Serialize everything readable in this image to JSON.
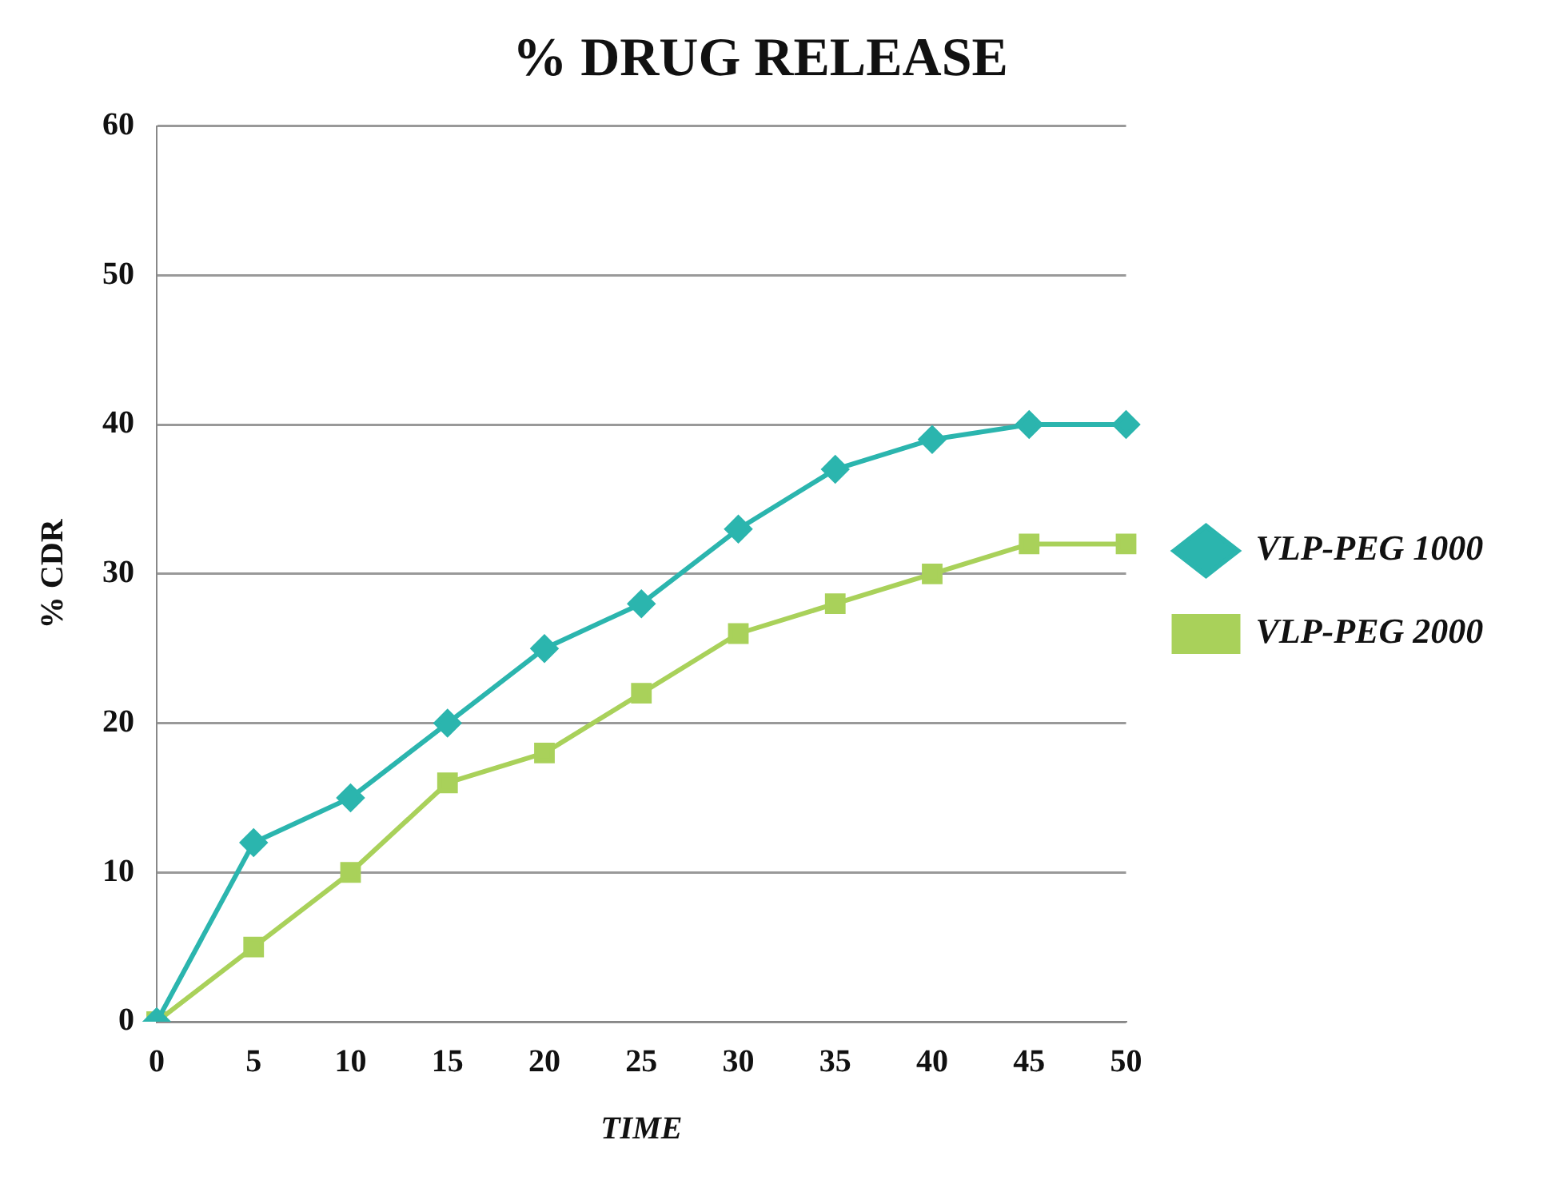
{
  "chart_data": {
    "type": "line",
    "title": "% DRUG RELEASE",
    "xlabel": "TIME",
    "ylabel": "% CDR",
    "categories": [
      "0",
      "5",
      "10",
      "15",
      "20",
      "25",
      "30",
      "35",
      "40",
      "45",
      "50"
    ],
    "series": [
      {
        "name": "VLP-PEG 1000",
        "color": "#2bb5ae",
        "marker": "diamond",
        "values": [
          0,
          12,
          15,
          20,
          25,
          28,
          33,
          37,
          39,
          40,
          40
        ]
      },
      {
        "name": "VLP-PEG 2000",
        "color": "#a9d15a",
        "marker": "square",
        "values": [
          0,
          5,
          10,
          16,
          18,
          22,
          26,
          28,
          30,
          32,
          32
        ]
      }
    ],
    "ylim": [
      0,
      60
    ],
    "yticks": [
      0,
      10,
      20,
      30,
      40,
      50,
      60
    ],
    "grid": "y",
    "legend": "right"
  }
}
